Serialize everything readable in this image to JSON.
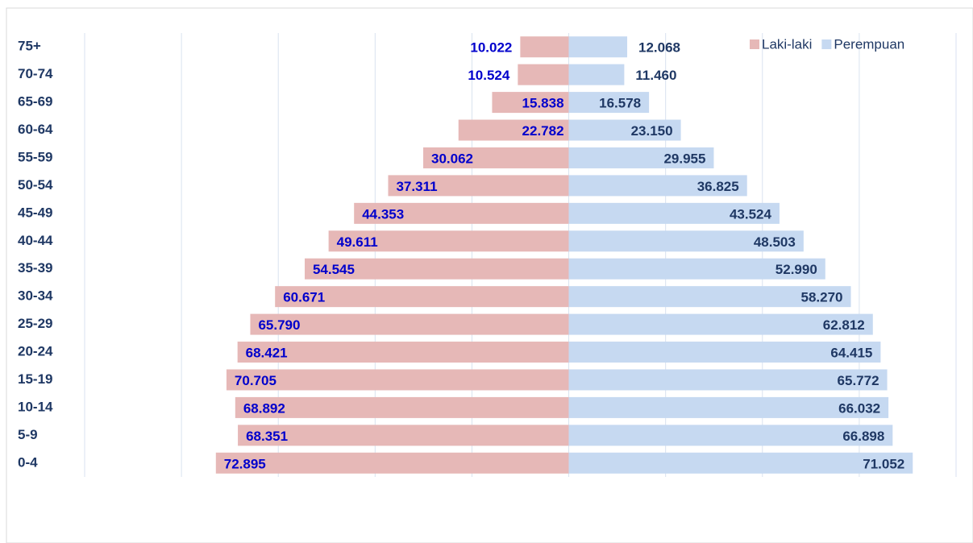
{
  "chart_data": {
    "type": "pyramid",
    "categories": [
      "75+",
      "70-74",
      "65-69",
      "60-64",
      "55-59",
      "50-54",
      "45-49",
      "40-44",
      "35-39",
      "30-34",
      "25-29",
      "20-24",
      "15-19",
      "10-14",
      "5-9",
      "0-4"
    ],
    "series": [
      {
        "name": "Laki-laki",
        "color": "#e6b8b7",
        "values": [
          10022,
          10524,
          15838,
          22782,
          30062,
          37311,
          44353,
          49611,
          54545,
          60671,
          65790,
          68421,
          70705,
          68892,
          68351,
          72895
        ],
        "value_labels": [
          "10.022",
          "10.524",
          "15.838",
          "22.782",
          "30.062",
          "37.311",
          "44.353",
          "49.611",
          "54.545",
          "60.671",
          "65.790",
          "68.421",
          "70.705",
          "68.892",
          "68.351",
          "72.895"
        ]
      },
      {
        "name": "Perempuan",
        "color": "#c6d9f1",
        "values": [
          12068,
          11460,
          16578,
          23150,
          29955,
          36825,
          43524,
          48503,
          52990,
          58270,
          62812,
          64415,
          65772,
          66032,
          66898,
          71052
        ],
        "value_labels": [
          "12.068",
          "11.460",
          "16.578",
          "23.150",
          "29.955",
          "36.825",
          "43.524",
          "48.503",
          "52.990",
          "58.270",
          "62.812",
          "64.415",
          "65.772",
          "66.032",
          "66.898",
          "71.052"
        ]
      }
    ],
    "xlim": [
      -100000,
      80000
    ],
    "xticks": [
      -100000,
      -80000,
      -60000,
      -40000,
      -20000,
      0,
      20000,
      40000,
      60000,
      80000
    ],
    "grid": true,
    "legend": "top-right"
  }
}
